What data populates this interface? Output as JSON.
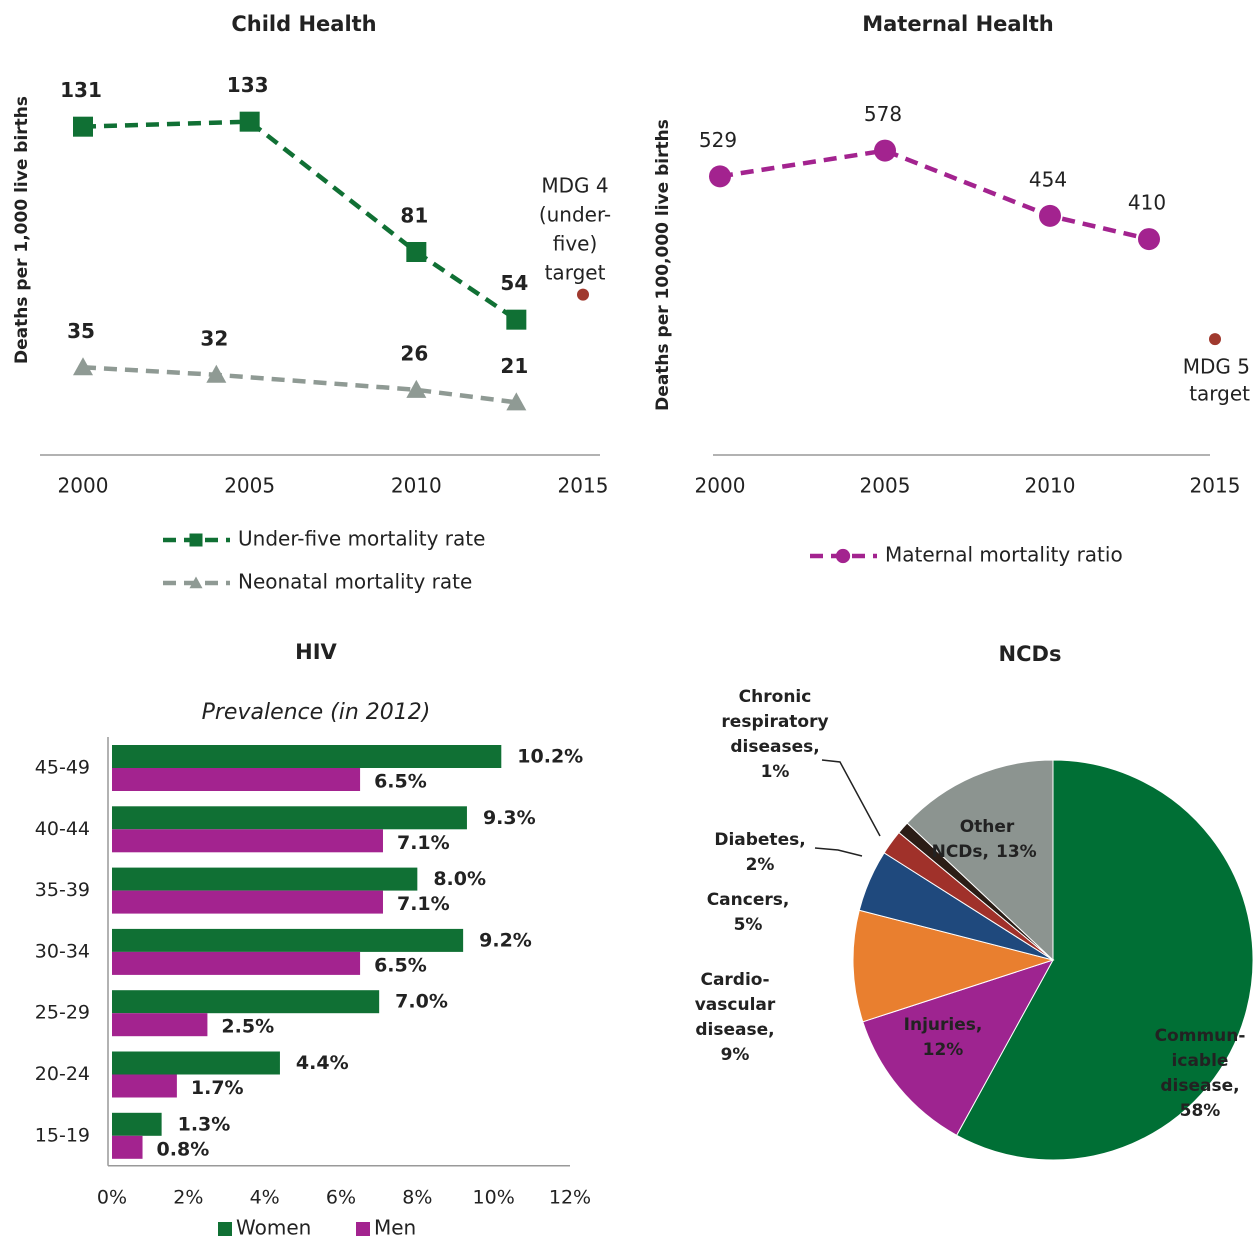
{
  "chart_data": [
    {
      "type": "line",
      "title": "Child Health",
      "ylabel": "Deaths per 1,000 live births",
      "xlim": [
        2000,
        2015
      ],
      "xticks": [
        2000,
        2005,
        2010,
        2015
      ],
      "ylim": [
        0,
        160
      ],
      "series": [
        {
          "name": "Under-five mortality rate",
          "color": "#107034",
          "marker": "square",
          "x": [
            2000,
            2005,
            2010,
            2013
          ],
          "values": [
            131,
            133,
            81,
            54
          ]
        },
        {
          "name": "Neonatal mortality rate",
          "color": "#8f9a94",
          "marker": "triangle",
          "x": [
            2000,
            2004,
            2010,
            2013
          ],
          "values": [
            35,
            32,
            26,
            21
          ]
        }
      ],
      "target": {
        "x": 2015,
        "value": 64,
        "color": "#a0392e",
        "label_lines": [
          "MDG 4",
          "(under-",
          "five)",
          "target"
        ]
      },
      "legend": "bottom"
    },
    {
      "type": "line",
      "title": "Maternal Health",
      "ylabel": "Deaths per 100,000 live births",
      "xlim": [
        2000,
        2015
      ],
      "xticks": [
        2000,
        2005,
        2010,
        2015
      ],
      "ylim": [
        0,
        750
      ],
      "series": [
        {
          "name": "Maternal mortality ratio",
          "color": "#a3238f",
          "marker": "circle",
          "x": [
            2000,
            2005,
            2010,
            2013
          ],
          "values": [
            529,
            578,
            454,
            410
          ]
        }
      ],
      "target": {
        "x": 2015,
        "value": 220,
        "color": "#a0392e",
        "label_lines": [
          "MDG 5",
          "target"
        ]
      },
      "legend": "bottom"
    },
    {
      "type": "bar",
      "orientation": "horizontal",
      "title": "HIV",
      "subtitle": "Prevalence  (in 2012)",
      "categories": [
        "45-49",
        "40-44",
        "35-39",
        "30-34",
        "25-29",
        "20-24",
        "15-19"
      ],
      "series": [
        {
          "name": "Women",
          "color": "#107034",
          "values": [
            10.2,
            9.3,
            8.0,
            9.2,
            7.0,
            4.4,
            1.3
          ],
          "value_labels": [
            "10.2%",
            "9.3%",
            "8.0%",
            "9.2%",
            "7.0%",
            "4.4%",
            "1.3%"
          ]
        },
        {
          "name": "Men",
          "color": "#a3238f",
          "values": [
            6.5,
            7.1,
            7.1,
            6.5,
            2.5,
            1.7,
            0.8
          ],
          "value_labels": [
            "6.5%",
            "7.1%",
            "7.1%",
            "6.5%",
            "2.5%",
            "1.7%",
            "0.8%"
          ]
        }
      ],
      "xlim": [
        0,
        12
      ],
      "xticks": [
        {
          "value": 0,
          "label": "0%"
        },
        {
          "value": 2,
          "label": "2%"
        },
        {
          "value": 4,
          "label": "4%"
        },
        {
          "value": 6,
          "label": "6%"
        },
        {
          "value": 8,
          "label": "8%"
        },
        {
          "value": 10,
          "label": "10%"
        },
        {
          "value": 12,
          "label": "12%"
        }
      ],
      "legend": "bottom"
    },
    {
      "type": "pie",
      "title": "NCDs",
      "categories": [
        [
          "Commun-",
          "icable",
          "disease,"
        ],
        [
          "Injuries,"
        ],
        [
          "Cardio-",
          "vascular",
          "disease,"
        ],
        [
          "Cancers,"
        ],
        [
          "Diabetes,"
        ],
        [
          "Chronic",
          "respiratory",
          "diseases,"
        ],
        [
          "Other",
          "NCDs,"
        ]
      ],
      "values": [
        58,
        12,
        9,
        5,
        2,
        1,
        13
      ],
      "value_labels": [
        "58%",
        "12%",
        "9%",
        "5%",
        "2%",
        "1%",
        "13%"
      ],
      "colors": [
        "#006f35",
        "#9e2490",
        "#e97f2f",
        "#1f497d",
        "#a0312a",
        "#2b1d16",
        "#8c9490"
      ]
    }
  ]
}
